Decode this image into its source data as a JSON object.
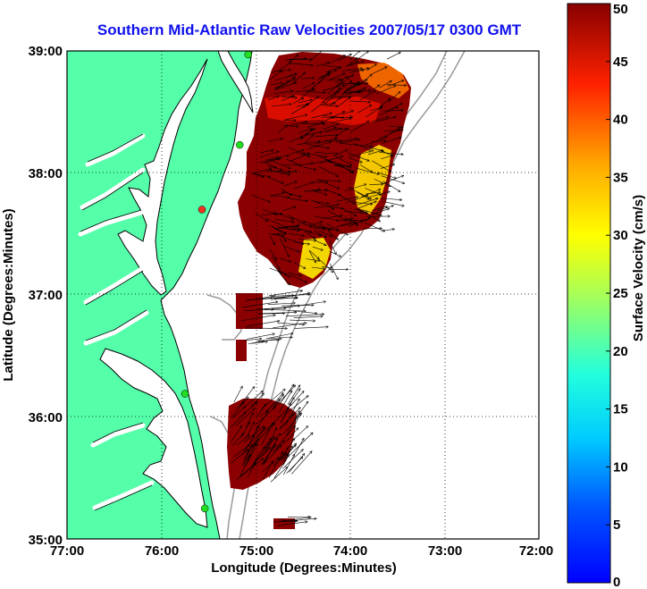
{
  "title": "Southern Mid-Atlantic Raw Velocities 2007/05/17 0300 GMT",
  "x_axis": {
    "label": "Longitude (Degrees:Minutes)",
    "ticks": [
      "77:00",
      "76:00",
      "75:00",
      "74:00",
      "73:00",
      "72:00"
    ],
    "range": [
      -77,
      -72
    ]
  },
  "y_axis": {
    "label": "Latitude (Degrees:Minutes)",
    "ticks": [
      "35:00",
      "36:00",
      "37:00",
      "38:00",
      "39:00"
    ],
    "range": [
      35,
      39
    ]
  },
  "colorbar": {
    "label": "Surface Velocity (cm/s)",
    "range": [
      0,
      50
    ],
    "ticks": [
      "0",
      "5",
      "10",
      "15",
      "20",
      "25",
      "30",
      "35",
      "40",
      "45",
      "50"
    ],
    "colormap": "jet"
  },
  "colors": {
    "title": "#1010ee",
    "land": "#55ffaa",
    "water": "#ffffff",
    "coast": "#000000",
    "bathymetry": "#999999",
    "station": "#22dd22"
  },
  "grid": "dotted",
  "stations": [
    {
      "lon": -75.08,
      "lat": 38.97,
      "color": "#22dd22"
    },
    {
      "lon": -75.17,
      "lat": 38.23,
      "color": "#22dd22"
    },
    {
      "lon": -75.57,
      "lat": 37.7,
      "color": "#ee3322"
    },
    {
      "lon": -75.75,
      "lat": 36.19,
      "color": "#22dd22"
    },
    {
      "lon": -75.54,
      "lat": 35.25,
      "color": "#22dd22"
    }
  ]
}
